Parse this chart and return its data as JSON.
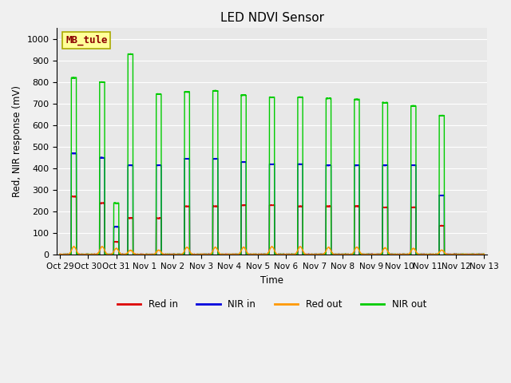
{
  "title": "LED NDVI Sensor",
  "ylabel": "Red, NIR response (mV)",
  "xlabel": "Time",
  "ylim": [
    0,
    1050
  ],
  "yticks": [
    0,
    100,
    200,
    300,
    400,
    500,
    600,
    700,
    800,
    900,
    1000
  ],
  "background_color": "#f0f0f0",
  "plot_bg_color": "#e8e8e8",
  "annotation_text": "MB_tule",
  "annotation_color": "#8b0000",
  "annotation_bg": "#ffff99",
  "annotation_border": "#aaaa00",
  "colors": {
    "red_in": "#dd0000",
    "nir_in": "#0000dd",
    "red_out": "#ff9900",
    "nir_out": "#00cc00"
  },
  "legend_labels": [
    "Red in",
    "NIR in",
    "Red out",
    "NIR out"
  ],
  "x_tick_labels": [
    "Oct 29",
    "Oct 30",
    "Oct 31",
    "Nov 1",
    "Nov 2",
    "Nov 3",
    "Nov 4",
    "Nov 5",
    "Nov 6",
    "Nov 7",
    "Nov 8",
    "Nov 9",
    "Nov 10",
    "Nov 11",
    "Nov 12",
    "Nov 13"
  ],
  "day_data": [
    [
      0.5,
      270,
      470,
      38,
      820
    ],
    [
      1.5,
      240,
      450,
      38,
      800
    ],
    [
      2.0,
      60,
      130,
      30,
      240
    ],
    [
      2.5,
      170,
      415,
      22,
      930
    ],
    [
      3.5,
      170,
      415,
      22,
      745
    ],
    [
      4.5,
      225,
      445,
      35,
      755
    ],
    [
      5.5,
      225,
      445,
      35,
      760
    ],
    [
      6.5,
      230,
      430,
      35,
      740
    ],
    [
      7.5,
      230,
      420,
      38,
      730
    ],
    [
      8.5,
      225,
      420,
      38,
      730
    ],
    [
      9.5,
      225,
      415,
      35,
      725
    ],
    [
      10.5,
      225,
      415,
      35,
      720
    ],
    [
      11.5,
      220,
      415,
      33,
      705
    ],
    [
      12.5,
      220,
      415,
      30,
      690
    ],
    [
      13.5,
      135,
      275,
      22,
      645
    ]
  ]
}
